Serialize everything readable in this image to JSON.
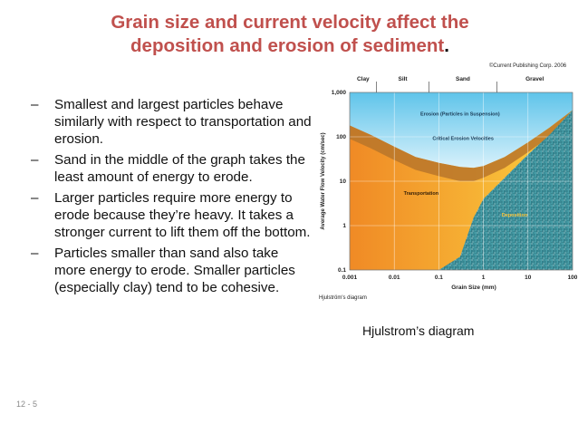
{
  "slide": {
    "title_line1": "Grain size and current velocity affect the",
    "title_line2": "deposition and erosion of sediment",
    "title_period": ".",
    "bullets": [
      "Smallest and largest particles behave similarly with respect to transportation and erosion.",
      "Sand in the middle of the graph takes the least amount of energy to erode.",
      "Larger particles require more energy to erode because they’re heavy. It takes a stronger current to lift them off the bottom.",
      "Particles smaller than sand also take more energy to erode. Smaller particles (especially clay) tend to be cohesive."
    ],
    "caption": "Hjulstrom’s diagram",
    "slide_number": "12 - 5",
    "copyright": "©Current Publishing Corp. 2006"
  },
  "chart_data": {
    "type": "area",
    "caption_in_chart": "Hjulström's diagram",
    "xlabel": "Grain Size (mm)",
    "ylabel": "Average Water Flow Velocity (cm/sec)",
    "x_scale": "log",
    "y_scale": "log",
    "xlim": [
      0.001,
      100
    ],
    "ylim": [
      0.1,
      1000
    ],
    "x_ticks": [
      "0.001",
      "0.01",
      "0.1",
      "1",
      "10",
      "100"
    ],
    "y_ticks": [
      "0.1",
      "1",
      "10",
      "100",
      "1,000"
    ],
    "grain_classes": [
      "Clay",
      "Silt",
      "Sand",
      "Gravel"
    ],
    "grain_class_bounds": [
      0.001,
      0.004,
      0.06,
      2,
      100
    ],
    "regions": {
      "erosion": "Erosion (Particles in Suspension)",
      "critical": "Critical Erosion Velocities",
      "transport": "Transportation",
      "deposition": "Deposition"
    },
    "series": [
      {
        "name": "erosion-upper",
        "x": [
          0.001,
          0.003,
          0.01,
          0.03,
          0.1,
          0.3,
          0.6,
          1,
          3,
          10,
          30,
          100
        ],
        "y": [
          180,
          110,
          60,
          35,
          26,
          21,
          20,
          22,
          35,
          75,
          160,
          400
        ]
      },
      {
        "name": "erosion-lower",
        "x": [
          0.001,
          0.003,
          0.01,
          0.03,
          0.1,
          0.3,
          0.6,
          1,
          3,
          10,
          30,
          100
        ],
        "y": [
          90,
          55,
          30,
          18,
          13,
          10,
          10,
          12,
          20,
          45,
          100,
          250
        ]
      },
      {
        "name": "deposition-limit",
        "x": [
          0.001,
          0.003,
          0.01,
          0.03,
          0.1,
          0.3,
          0.6,
          1,
          3,
          10,
          30,
          100
        ],
        "y": [
          0.1,
          0.1,
          0.1,
          0.1,
          0.1,
          0.2,
          1.5,
          4,
          12,
          40,
          110,
          400
        ]
      }
    ]
  }
}
